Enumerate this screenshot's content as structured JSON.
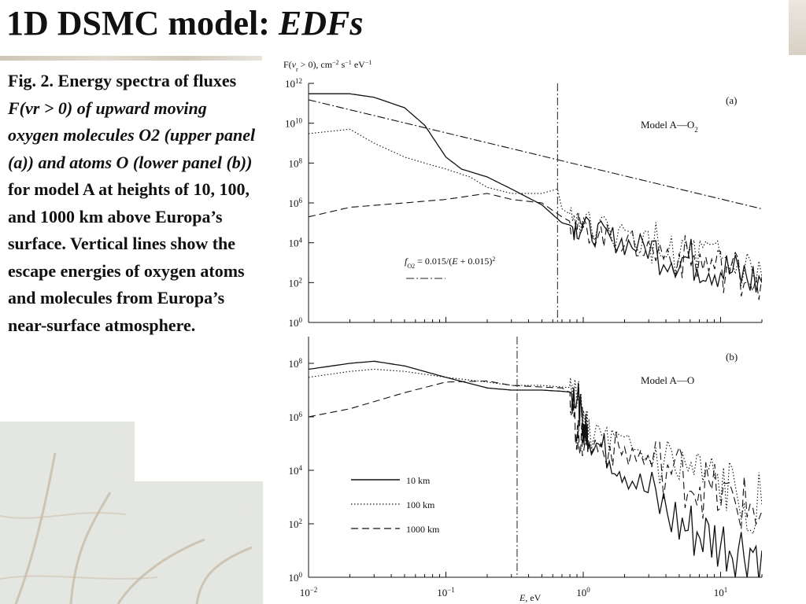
{
  "slide": {
    "title_main": "1D DSMC model: ",
    "title_emph": "EDFs"
  },
  "caption": {
    "p1": "Fig. 2. Energy spectra of fluxes ",
    "p2_it": "F(vr > 0) of upward moving oxygen molecules O2 (upper panel (a)) and atoms O (lower panel (b))",
    "p3": " for model A at heights of 10, 100, and 1000 km above Europa’s surface. Vertical lines show the escape energies of oxygen atoms and molecules from Europa’s near-surface atmosphere."
  },
  "colors": {
    "ink": "#111111",
    "background": "#ffffff",
    "photo_ice": "#d9dcd6"
  },
  "chart_data": [
    {
      "type": "line",
      "panel": "(a)",
      "annotation": "Model A—O2",
      "ylabel": "F(vr > 0), cm−2 s−1 eV−1",
      "xlabel": "E, eV",
      "x_scale": "log",
      "y_scale": "log",
      "xlim": [
        0.01,
        20
      ],
      "ylim": [
        1,
        1000000000000.0
      ],
      "y_ticks": [
        "10^0",
        "10^2",
        "10^4",
        "10^6",
        "10^8",
        "10^10",
        "10^12"
      ],
      "escape_energy_eV": 0.65,
      "formula_label": "fO2 = 0.015/(E + 0.015)^2",
      "series": [
        {
          "name": "10 km",
          "style": "solid",
          "x": [
            0.01,
            0.02,
            0.03,
            0.05,
            0.07,
            0.1,
            0.13,
            0.2,
            0.3,
            0.5,
            0.7,
            1.0,
            2.0,
            5.0,
            10.0,
            20.0
          ],
          "y": [
            300000000000.0,
            300000000000.0,
            200000000000.0,
            60000000000.0,
            8000000000.0,
            200000000.0,
            50000000.0,
            20000000.0,
            5000000.0,
            800000.0,
            100000.0,
            50000.0,
            10000.0,
            2000.0,
            500,
            100
          ]
        },
        {
          "name": "100 km",
          "style": "dotted",
          "x": [
            0.01,
            0.02,
            0.03,
            0.05,
            0.07,
            0.1,
            0.15,
            0.2,
            0.3,
            0.5,
            0.65,
            0.7,
            1.0,
            2.0,
            5.0,
            10.0,
            20.0
          ],
          "y": [
            3000000000.0,
            5000000000.0,
            1000000000.0,
            200000000.0,
            100000000.0,
            50000000.0,
            20000000.0,
            6000000.0,
            3000000.0,
            3000000.0,
            5000000.0,
            500000.0,
            100000.0,
            20000.0,
            3000.0,
            800,
            200
          ]
        },
        {
          "name": "1000 km",
          "style": "dashed",
          "x": [
            0.01,
            0.02,
            0.05,
            0.1,
            0.2,
            0.3,
            0.5,
            0.7,
            1.0,
            2.0,
            5.0,
            10.0,
            20.0
          ],
          "y": [
            200000.0,
            600000.0,
            1000000.0,
            1500000.0,
            3000000.0,
            1500000.0,
            1000000.0,
            200000.0,
            50000.0,
            10000.0,
            2000.0,
            500,
            200
          ]
        },
        {
          "name": "fO2 = 0.015/(E + 0.015)^2",
          "style": "dash-dot",
          "x": [
            0.01,
            20
          ],
          "y": [
            150000000000.0,
            500000.0
          ]
        }
      ]
    },
    {
      "type": "line",
      "panel": "(b)",
      "annotation": "Model A—O",
      "ylabel": "",
      "xlabel": "E, eV",
      "x_scale": "log",
      "y_scale": "log",
      "xlim": [
        0.01,
        20
      ],
      "ylim": [
        1,
        1000000000.0
      ],
      "x_ticks": [
        "10^-2",
        "10^-1",
        "10^0",
        "10^1"
      ],
      "y_ticks": [
        "10^0",
        "10^2",
        "10^4",
        "10^6",
        "10^8"
      ],
      "escape_energy_eV": 0.33,
      "series": [
        {
          "name": "10 km",
          "style": "solid",
          "x": [
            0.01,
            0.02,
            0.03,
            0.05,
            0.1,
            0.2,
            0.3,
            0.5,
            0.7,
            0.9,
            1.0,
            1.1,
            2.0,
            5.0,
            10.0,
            20.0
          ],
          "y": [
            60000000.0,
            100000000.0,
            120000000.0,
            80000000.0,
            30000000.0,
            12000000.0,
            10000000.0,
            10000000.0,
            9000000.0,
            8000000.0,
            400000.0,
            200000.0,
            10000.0,
            100,
            20,
            10
          ]
        },
        {
          "name": "100 km",
          "style": "dotted",
          "x": [
            0.01,
            0.02,
            0.03,
            0.05,
            0.1,
            0.2,
            0.3,
            0.5,
            0.7,
            0.9,
            1.0,
            1.1,
            2.0,
            5.0,
            10.0,
            20.0
          ],
          "y": [
            30000000.0,
            50000000.0,
            60000000.0,
            50000000.0,
            30000000.0,
            20000000.0,
            15000000.0,
            15000000.0,
            13000000.0,
            12000000.0,
            500000.0,
            300000.0,
            50000.0,
            10000.0,
            2000.0,
            500
          ]
        },
        {
          "name": "1000 km",
          "style": "dashed",
          "x": [
            0.01,
            0.02,
            0.05,
            0.1,
            0.2,
            0.3,
            0.5,
            0.7,
            0.8,
            0.9,
            1.0,
            2.0,
            5.0,
            10.0,
            20.0
          ],
          "y": [
            1000000.0,
            2000000.0,
            8000000.0,
            20000000.0,
            22000000.0,
            15000000.0,
            13000000.0,
            12000000.0,
            8000000.0,
            200000.0,
            100000.0,
            50000.0,
            8000.0,
            1000.0,
            300
          ]
        }
      ]
    }
  ]
}
